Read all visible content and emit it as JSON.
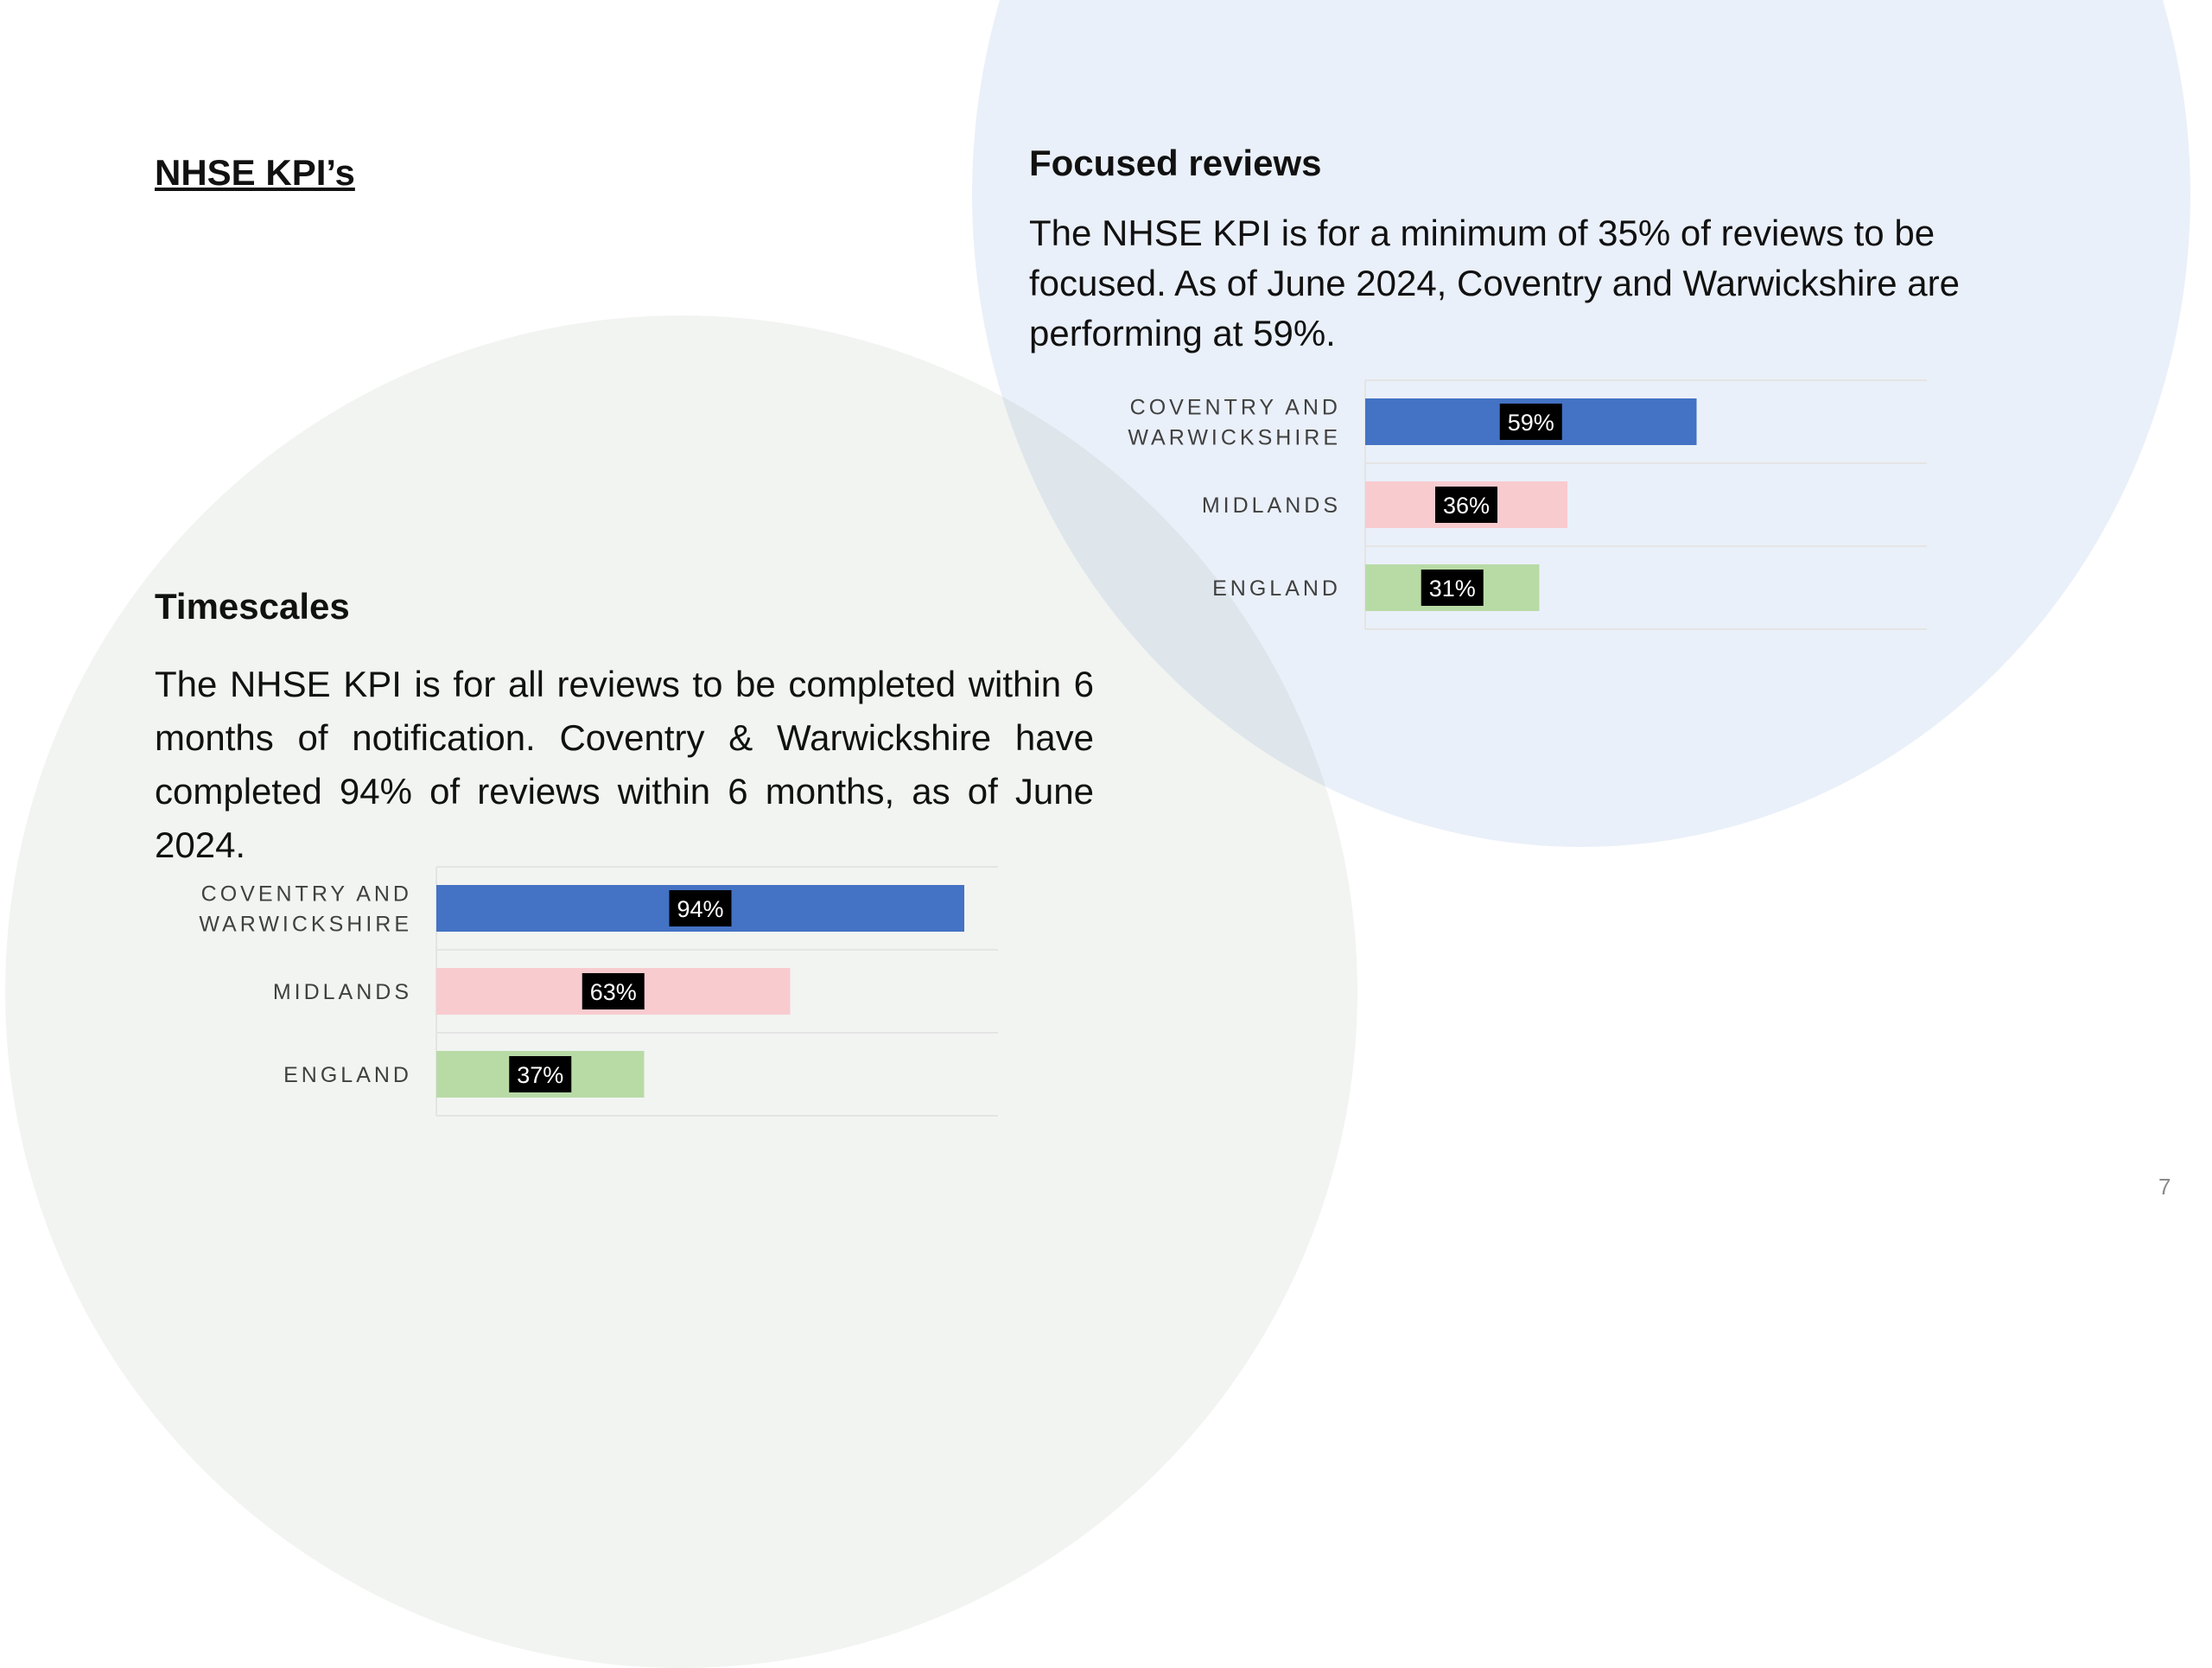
{
  "page": {
    "title": "NHSE KPI’s",
    "page_number": "7"
  },
  "sections": {
    "focused": {
      "title": "Focused reviews",
      "text": "The NHSE KPI is for a minimum of 35% of reviews to be focused.  As of June 2024, Coventry and Warwickshire are performing at 59%."
    },
    "timescales": {
      "title": "Timescales",
      "text": "The NHSE KPI is for all reviews to be completed within 6 months of notification. Coventry & Warwickshire have completed 94% of reviews within 6 months, as of June 2024."
    }
  },
  "colors": {
    "coventry": "#4472c4",
    "midlands": "#f8cbcf",
    "england": "#b8dba6",
    "label_bg": "#000000"
  },
  "chart_data": [
    {
      "type": "bar",
      "orientation": "horizontal",
      "categories": [
        [
          "COVENTRY AND",
          "WARWICKSHIRE"
        ],
        [
          "MIDLANDS"
        ],
        [
          "ENGLAND"
        ]
      ],
      "values": [
        59,
        36,
        31
      ],
      "data_labels": [
        "59%",
        "36%",
        "31%"
      ],
      "xlim": [
        0,
        100
      ],
      "grid": true
    },
    {
      "type": "bar",
      "orientation": "horizontal",
      "categories": [
        [
          "COVENTRY AND",
          "WARWICKSHIRE"
        ],
        [
          "MIDLANDS"
        ],
        [
          "ENGLAND"
        ]
      ],
      "values": [
        94,
        63,
        37
      ],
      "data_labels": [
        "94%",
        "63%",
        "37%"
      ],
      "xlim": [
        0,
        100
      ],
      "grid": true
    }
  ]
}
